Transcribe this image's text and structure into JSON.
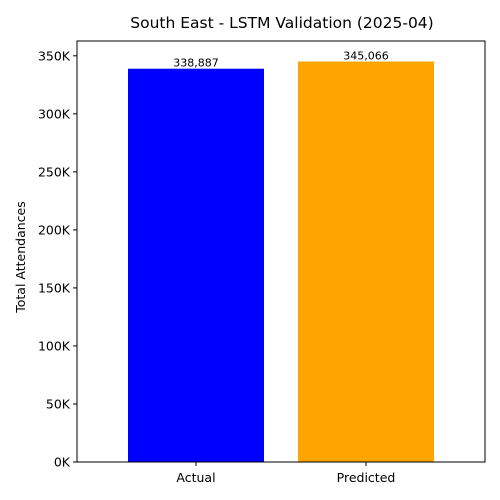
{
  "chart_data": {
    "type": "bar",
    "title": "South East - LSTM Validation (2025-04)",
    "xlabel": "",
    "ylabel": "Total Attendances",
    "categories": [
      "Actual",
      "Predicted"
    ],
    "values": [
      338887,
      345066
    ],
    "data_labels": [
      "338,887",
      "345,066"
    ],
    "colors": [
      "#0000ff",
      "#ffa500"
    ],
    "ylim": [
      0,
      362764
    ],
    "yticks": [
      0,
      50000,
      100000,
      150000,
      200000,
      250000,
      300000,
      350000
    ],
    "ytick_labels": [
      "0K",
      "50K",
      "100K",
      "150K",
      "200K",
      "250K",
      "300K",
      "350K"
    ],
    "grid": false,
    "legend": "none"
  }
}
